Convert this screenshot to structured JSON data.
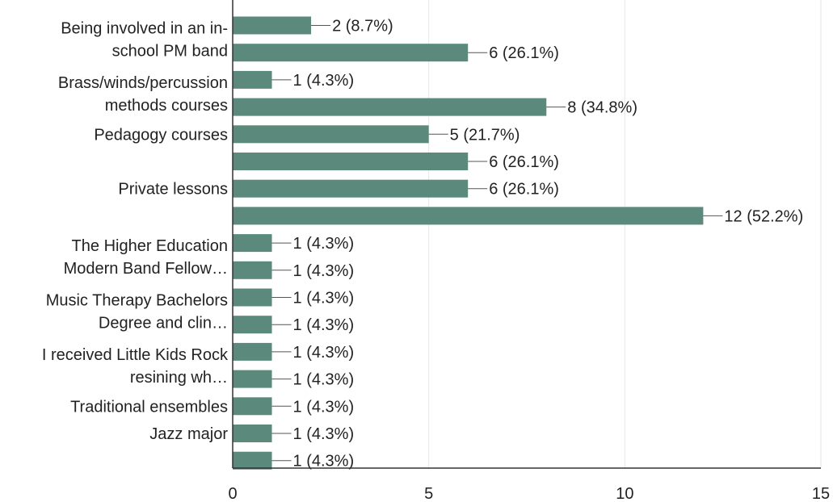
{
  "chart_data": {
    "type": "bar",
    "orientation": "horizontal",
    "categories": [
      "Being involved in an in-school PM band",
      "",
      "Brass/winds/percussion methods courses",
      "",
      "Pedagogy courses",
      "",
      "Private lessons",
      "",
      "The Higher Education Modern Band Fellow…",
      "",
      "Music Therapy Bachelors Degree and clin…",
      "",
      "I received Little Kids Rock resining wh…",
      "",
      "Traditional ensembles",
      "Jazz major",
      ""
    ],
    "category_label_lines": [
      [
        "Being involved in an in-",
        "school PM band"
      ],
      [],
      [
        "Brass/winds/percussion",
        "methods courses"
      ],
      [],
      [
        "Pedagogy courses"
      ],
      [],
      [
        "Private lessons"
      ],
      [],
      [
        "The Higher Education",
        "Modern Band Fellow…"
      ],
      [],
      [
        "Music Therapy Bachelors",
        "Degree and clin…"
      ],
      [],
      [
        "I received Little Kids Rock",
        "resining wh…"
      ],
      [],
      [
        "Traditional ensembles"
      ],
      [
        "Jazz major"
      ],
      []
    ],
    "values": [
      2,
      6,
      1,
      8,
      5,
      6,
      6,
      12,
      1,
      1,
      1,
      1,
      1,
      1,
      1,
      1,
      1
    ],
    "data_labels": [
      "2 (8.7%)",
      "6 (26.1%)",
      "1 (4.3%)",
      "8 (34.8%)",
      "5 (21.7%)",
      "6 (26.1%)",
      "6 (26.1%)",
      "12 (52.2%)",
      "1 (4.3%)",
      "1 (4.3%)",
      "1 (4.3%)",
      "1 (4.3%)",
      "1 (4.3%)",
      "1 (4.3%)",
      "1 (4.3%)",
      "1 (4.3%)",
      "1 (4.3%)"
    ],
    "x_ticks": [
      "0",
      "5",
      "10",
      "15"
    ],
    "xlim": [
      0,
      15
    ],
    "bar_color": "#5b8a7d",
    "grid_color": "#e6e6e6",
    "axis_color": "#333333",
    "title": "",
    "xlabel": "",
    "ylabel": ""
  }
}
